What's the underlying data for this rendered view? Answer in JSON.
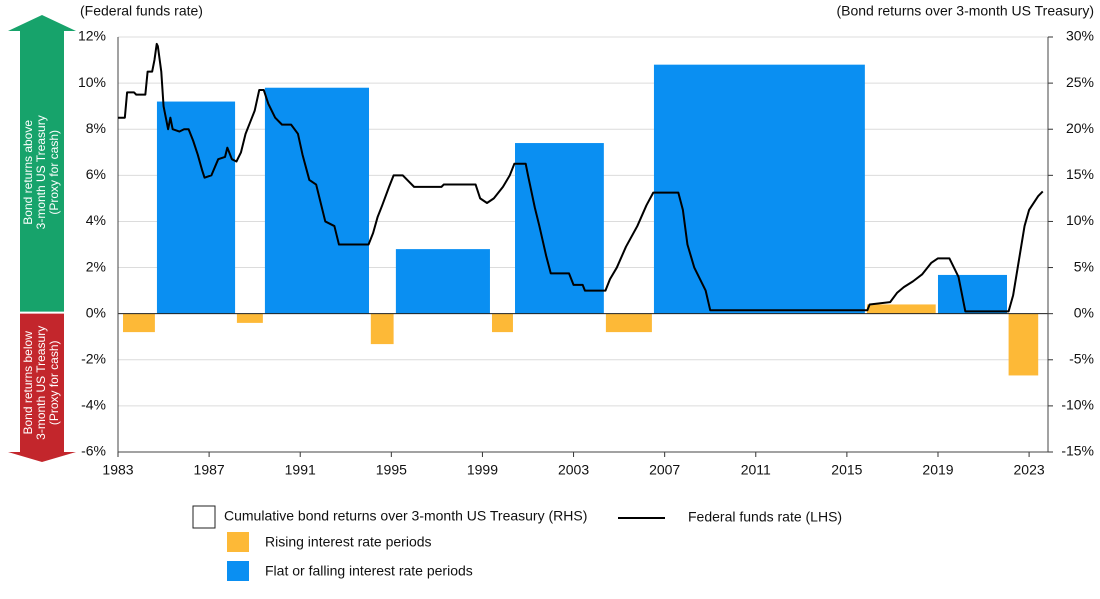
{
  "chart_data": {
    "type": "combo",
    "ylabel": "(Federal funds rate)",
    "y2label": "(Bond returns over 3-month US Treasury)",
    "legend_title": "Cumulative bond returns over 3-month US Treasury (RHS)",
    "xlim": [
      1983,
      2023.83
    ],
    "xticks": [
      1983,
      1987,
      1991,
      1995,
      1999,
      2003,
      2007,
      2011,
      2015,
      2019,
      2023
    ],
    "ylim": [
      -6,
      12
    ],
    "yticks": [
      {
        "value": -6,
        "label": "-6%"
      },
      {
        "value": -4,
        "label": "-4%"
      },
      {
        "value": -2,
        "label": "-2%"
      },
      {
        "value": 0,
        "label": "0%"
      },
      {
        "value": 2,
        "label": "2%"
      },
      {
        "value": 4,
        "label": "4%"
      },
      {
        "value": 6,
        "label": "6%"
      },
      {
        "value": 8,
        "label": "8%"
      },
      {
        "value": 10,
        "label": "10%"
      },
      {
        "value": 12,
        "label": "12%"
      }
    ],
    "y2lim": [
      -15,
      30
    ],
    "y2ticks": [
      {
        "value": -15,
        "label": "-15%"
      },
      {
        "value": -10,
        "label": "-10%"
      },
      {
        "value": -5,
        "label": "-5%"
      },
      {
        "value": 0,
        "label": "0%"
      },
      {
        "value": 5,
        "label": "5%"
      },
      {
        "value": 10,
        "label": "10%"
      },
      {
        "value": 15,
        "label": "15%"
      },
      {
        "value": 20,
        "label": "20%"
      },
      {
        "value": 25,
        "label": "25%"
      },
      {
        "value": 30,
        "label": "30%"
      }
    ],
    "grid": true,
    "side_labels": [
      {
        "lines": [
          "Bond returns above",
          "3-month US Treasury",
          "(Proxy for cash)"
        ],
        "color": "#17a36b"
      },
      {
        "lines": [
          "Bond returns below",
          "3-month US Treasury",
          "(Proxy for cash)"
        ],
        "color": "#c3262c"
      }
    ],
    "series": [
      {
        "name": "Rising interest rate periods",
        "type": "bar",
        "axis": "y2",
        "color": "#fdb937",
        "x_start": [
          1983.22,
          1988.22,
          1994.1,
          1999.42,
          2004.42,
          2015.88,
          2022.1
        ],
        "x_end": [
          1984.62,
          1989.36,
          1995.1,
          2000.34,
          2006.44,
          2018.9,
          2023.4
        ],
        "values": [
          -2,
          -1,
          -3.3,
          -2,
          -2,
          1,
          -6.7
        ]
      },
      {
        "name": "Flat or falling interest rate periods",
        "type": "bar",
        "axis": "y2",
        "color": "#0a8ff2",
        "x_start": [
          1984.71,
          1989.45,
          1995.2,
          2000.43,
          2006.53,
          2019.0
        ],
        "x_end": [
          1988.14,
          1994.02,
          1999.33,
          2004.33,
          2015.79,
          2022.03
        ],
        "values": [
          23,
          24.5,
          7,
          18.5,
          27,
          4.2
        ]
      },
      {
        "name": "Federal funds rate (LHS)",
        "type": "line",
        "color": "#000000",
        "x": [
          1983.0,
          1983.3,
          1983.4,
          1983.7,
          1983.8,
          1984.2,
          1984.3,
          1984.5,
          1984.6,
          1984.7,
          1984.75,
          1984.9,
          1985.0,
          1985.1,
          1985.2,
          1985.3,
          1985.4,
          1985.7,
          1985.9,
          1986.1,
          1986.3,
          1986.5,
          1986.7,
          1986.8,
          1987.1,
          1987.4,
          1987.7,
          1987.8,
          1988.0,
          1988.2,
          1988.4,
          1988.6,
          1988.8,
          1989.0,
          1989.2,
          1989.4,
          1989.6,
          1989.9,
          1990.2,
          1990.6,
          1990.9,
          1991.1,
          1991.4,
          1991.7,
          1991.9,
          1992.1,
          1992.5,
          1992.7,
          1993.0,
          1994.0,
          1994.2,
          1994.4,
          1994.6,
          1994.9,
          1995.1,
          1995.5,
          1995.7,
          1996.0,
          1997.2,
          1997.3,
          1998.7,
          1998.9,
          1999.2,
          1999.5,
          1999.9,
          2000.2,
          2000.4,
          2000.9,
          2001.0,
          2001.3,
          2001.5,
          2001.8,
          2002.0,
          2002.8,
          2003.0,
          2003.4,
          2003.5,
          2004.4,
          2004.6,
          2004.9,
          2005.3,
          2005.8,
          2006.2,
          2006.5,
          2007.6,
          2007.8,
          2008.0,
          2008.3,
          2008.8,
          2009.0,
          2015.9,
          2016.0,
          2016.9,
          2017.2,
          2017.5,
          2017.9,
          2018.3,
          2018.7,
          2019.0,
          2019.5,
          2019.7,
          2019.9,
          2020.2,
          2022.1,
          2022.3,
          2022.5,
          2022.8,
          2023.0,
          2023.4,
          2023.6
        ],
        "values": [
          8.5,
          8.5,
          9.6,
          9.6,
          9.5,
          9.5,
          10.5,
          10.5,
          11.0,
          11.7,
          11.6,
          10.5,
          9.0,
          8.5,
          8.0,
          8.5,
          8.0,
          7.9,
          8.0,
          8.0,
          7.5,
          6.9,
          6.2,
          5.9,
          6.0,
          6.7,
          6.8,
          7.2,
          6.7,
          6.6,
          7.0,
          7.8,
          8.3,
          8.8,
          9.7,
          9.7,
          9.1,
          8.5,
          8.2,
          8.2,
          7.8,
          6.9,
          5.8,
          5.6,
          4.8,
          4.0,
          3.8,
          3.0,
          3.0,
          3.0,
          3.5,
          4.2,
          4.7,
          5.5,
          6.0,
          6.0,
          5.8,
          5.5,
          5.5,
          5.6,
          5.6,
          5.0,
          4.8,
          5.0,
          5.5,
          6.0,
          6.5,
          6.5,
          6.0,
          4.6,
          3.8,
          2.5,
          1.75,
          1.75,
          1.25,
          1.25,
          1.0,
          1.0,
          1.5,
          2.0,
          2.9,
          3.8,
          4.7,
          5.25,
          5.25,
          4.5,
          3.0,
          2.0,
          1.0,
          0.15,
          0.15,
          0.4,
          0.5,
          0.9,
          1.15,
          1.4,
          1.7,
          2.2,
          2.4,
          2.4,
          2.0,
          1.6,
          0.1,
          0.1,
          0.8,
          2.0,
          3.8,
          4.5,
          5.1,
          5.3
        ]
      }
    ]
  }
}
